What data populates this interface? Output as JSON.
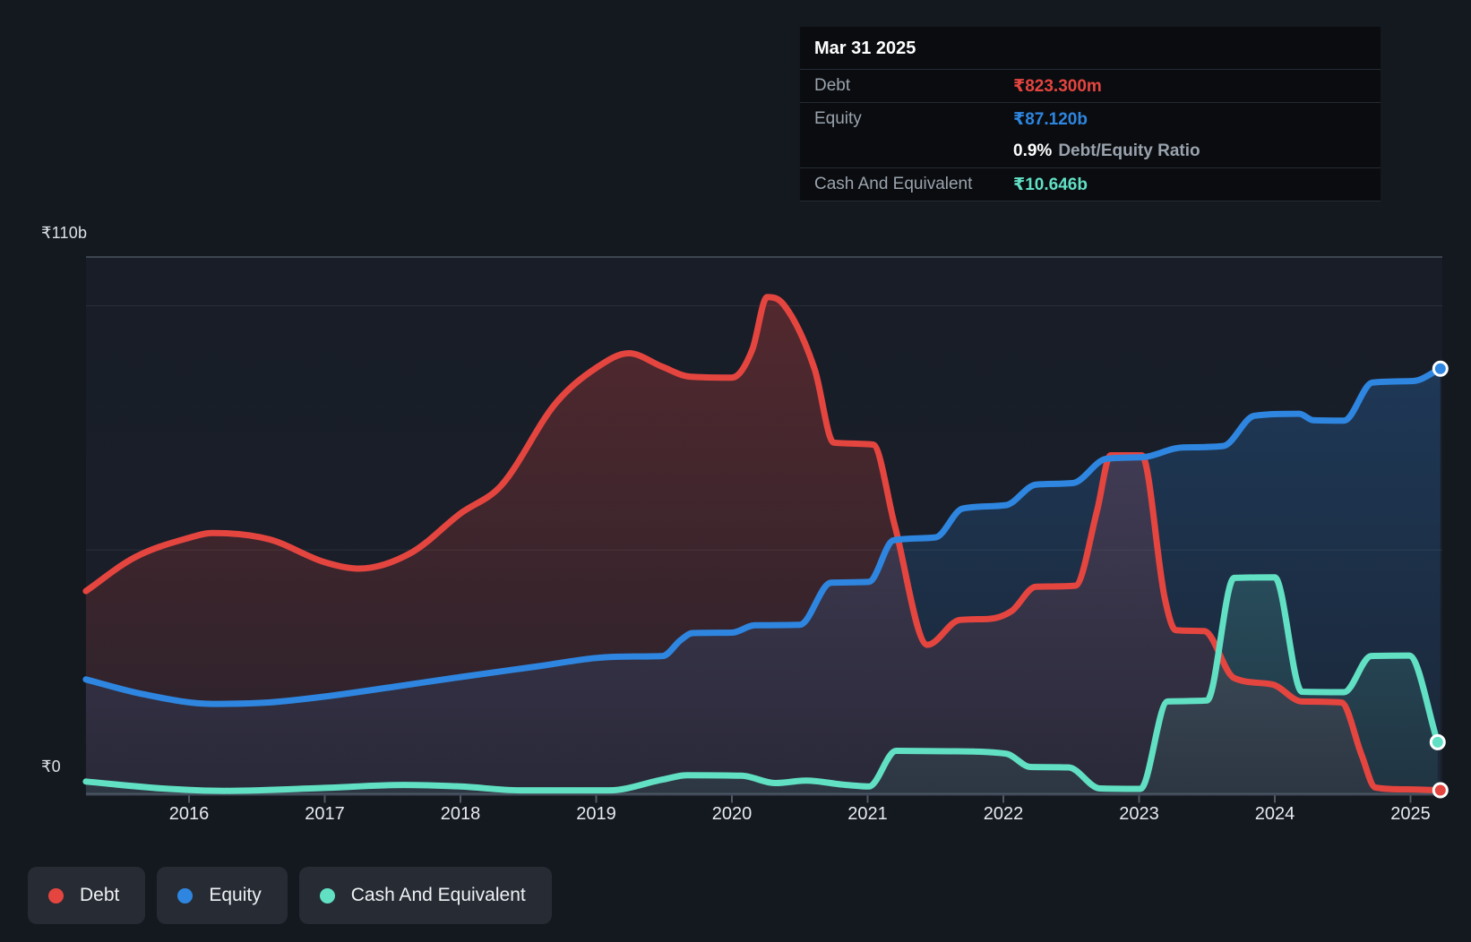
{
  "colors": {
    "debt": "#e5453f",
    "equity": "#2e86e0",
    "cash": "#61e0c4",
    "page_bg": "#14181f",
    "plot_bg_top": "#181d27",
    "plot_bg_bottom": "#1a1f2a",
    "grid_top": "#8c96a5",
    "grid_faint": "#ffffff",
    "baseline": "#3f4855",
    "tick": "#525a66",
    "tooltip_bg": "#0a0c10",
    "legend_pill_bg": "#272c34"
  },
  "axis": {
    "y_top_label": "₹110b",
    "y_zero_label": "₹0",
    "years": [
      "2016",
      "2017",
      "2018",
      "2019",
      "2020",
      "2021",
      "2022",
      "2023",
      "2024",
      "2025"
    ]
  },
  "tooltip": {
    "date": "Mar 31 2025",
    "debt_label": "Debt",
    "debt_value": "₹823.300m",
    "equity_label": "Equity",
    "equity_value": "₹87.120b",
    "ratio_value": "0.9%",
    "ratio_label": "Debt/Equity Ratio",
    "cash_label": "Cash And Equivalent",
    "cash_value": "₹10.646b"
  },
  "legend": {
    "items": [
      {
        "label": "Debt",
        "color_key": "debt"
      },
      {
        "label": "Equity",
        "color_key": "equity"
      },
      {
        "label": "Cash And Equivalent",
        "color_key": "cash"
      }
    ]
  },
  "chart_data": {
    "type": "area",
    "unit": "₹ billions (INR)",
    "x_label": "year",
    "x_range": [
      2015.24,
      2025.25
    ],
    "ylim": [
      0,
      110
    ],
    "y_gridline_values": [
      0,
      50,
      100,
      110
    ],
    "grid": true,
    "legend_position": "bottom-left",
    "end_markers": {
      "date": "Mar 31 2025",
      "debt_b": 0.8233,
      "equity_b": 87.12,
      "cash_b": 10.646
    },
    "series": [
      {
        "name": "Debt",
        "color_key": "debt",
        "points": [
          [
            2015.24,
            41.6
          ],
          [
            2015.6,
            48.5
          ],
          [
            2016.0,
            52.5
          ],
          [
            2016.17,
            53.5
          ],
          [
            2016.59,
            52.2
          ],
          [
            2017.0,
            47.5
          ],
          [
            2017.25,
            46.2
          ],
          [
            2017.64,
            49.5
          ],
          [
            2018.0,
            57.5
          ],
          [
            2018.3,
            63.2
          ],
          [
            2018.7,
            80.0
          ],
          [
            2019.0,
            87.3
          ],
          [
            2019.24,
            90.3
          ],
          [
            2019.49,
            87.5
          ],
          [
            2019.69,
            85.5
          ],
          [
            2020.0,
            85.3
          ],
          [
            2020.15,
            91.0
          ],
          [
            2020.26,
            101.8
          ],
          [
            2020.38,
            100.3
          ],
          [
            2020.61,
            87.0
          ],
          [
            2020.75,
            72.0
          ],
          [
            2021.04,
            71.6
          ],
          [
            2021.2,
            55.0
          ],
          [
            2021.44,
            30.6
          ],
          [
            2021.68,
            35.7
          ],
          [
            2021.89,
            35.9
          ],
          [
            2022.06,
            37.5
          ],
          [
            2022.24,
            42.5
          ],
          [
            2022.53,
            42.7
          ],
          [
            2022.69,
            58.0
          ],
          [
            2022.79,
            69.4
          ],
          [
            2023.02,
            69.4
          ],
          [
            2023.19,
            40.0
          ],
          [
            2023.27,
            33.6
          ],
          [
            2023.48,
            33.4
          ],
          [
            2023.7,
            23.8
          ],
          [
            2023.98,
            22.5
          ],
          [
            2024.2,
            19.0
          ],
          [
            2024.49,
            18.8
          ],
          [
            2024.64,
            8.0
          ],
          [
            2024.74,
            1.4
          ],
          [
            2024.97,
            1.0
          ],
          [
            2025.22,
            0.823
          ]
        ]
      },
      {
        "name": "Equity",
        "color_key": "equity",
        "points": [
          [
            2015.24,
            23.5
          ],
          [
            2015.66,
            20.5
          ],
          [
            2016.17,
            18.5
          ],
          [
            2016.59,
            18.8
          ],
          [
            2017.0,
            20.0
          ],
          [
            2017.51,
            22.0
          ],
          [
            2018.0,
            24.0
          ],
          [
            2018.57,
            26.2
          ],
          [
            2019.0,
            27.9
          ],
          [
            2019.23,
            28.2
          ],
          [
            2019.49,
            28.3
          ],
          [
            2019.62,
            31.5
          ],
          [
            2019.71,
            33.0
          ],
          [
            2020.0,
            33.1
          ],
          [
            2020.17,
            34.6
          ],
          [
            2020.5,
            34.7
          ],
          [
            2020.73,
            43.3
          ],
          [
            2021.01,
            43.5
          ],
          [
            2021.19,
            52.0
          ],
          [
            2021.5,
            52.6
          ],
          [
            2021.7,
            58.5
          ],
          [
            2022.02,
            59.2
          ],
          [
            2022.24,
            63.4
          ],
          [
            2022.51,
            63.7
          ],
          [
            2022.76,
            68.7
          ],
          [
            2023.02,
            69.0
          ],
          [
            2023.32,
            71.0
          ],
          [
            2023.62,
            71.3
          ],
          [
            2023.85,
            77.5
          ],
          [
            2024.18,
            77.9
          ],
          [
            2024.28,
            76.6
          ],
          [
            2024.51,
            76.5
          ],
          [
            2024.72,
            84.3
          ],
          [
            2025.02,
            84.6
          ],
          [
            2025.22,
            87.12
          ]
        ]
      },
      {
        "name": "Cash And Equivalent",
        "color_key": "cash",
        "points": [
          [
            2015.24,
            2.6
          ],
          [
            2015.8,
            1.2
          ],
          [
            2016.26,
            0.7
          ],
          [
            2017.0,
            1.3
          ],
          [
            2017.58,
            1.9
          ],
          [
            2018.0,
            1.6
          ],
          [
            2018.44,
            0.8
          ],
          [
            2019.1,
            0.8
          ],
          [
            2019.49,
            3.0
          ],
          [
            2019.67,
            3.9
          ],
          [
            2020.07,
            3.8
          ],
          [
            2020.32,
            2.3
          ],
          [
            2020.55,
            2.8
          ],
          [
            2020.81,
            2.0
          ],
          [
            2021.01,
            1.6
          ],
          [
            2021.21,
            8.9
          ],
          [
            2021.6,
            8.8
          ],
          [
            2022.02,
            8.3
          ],
          [
            2022.2,
            5.6
          ],
          [
            2022.48,
            5.5
          ],
          [
            2022.71,
            1.2
          ],
          [
            2023.01,
            1.1
          ],
          [
            2023.21,
            19.0
          ],
          [
            2023.5,
            19.2
          ],
          [
            2023.7,
            44.3
          ],
          [
            2024.0,
            44.4
          ],
          [
            2024.2,
            21.0
          ],
          [
            2024.51,
            20.9
          ],
          [
            2024.71,
            28.3
          ],
          [
            2024.99,
            28.4
          ],
          [
            2025.2,
            10.646
          ]
        ]
      }
    ]
  }
}
